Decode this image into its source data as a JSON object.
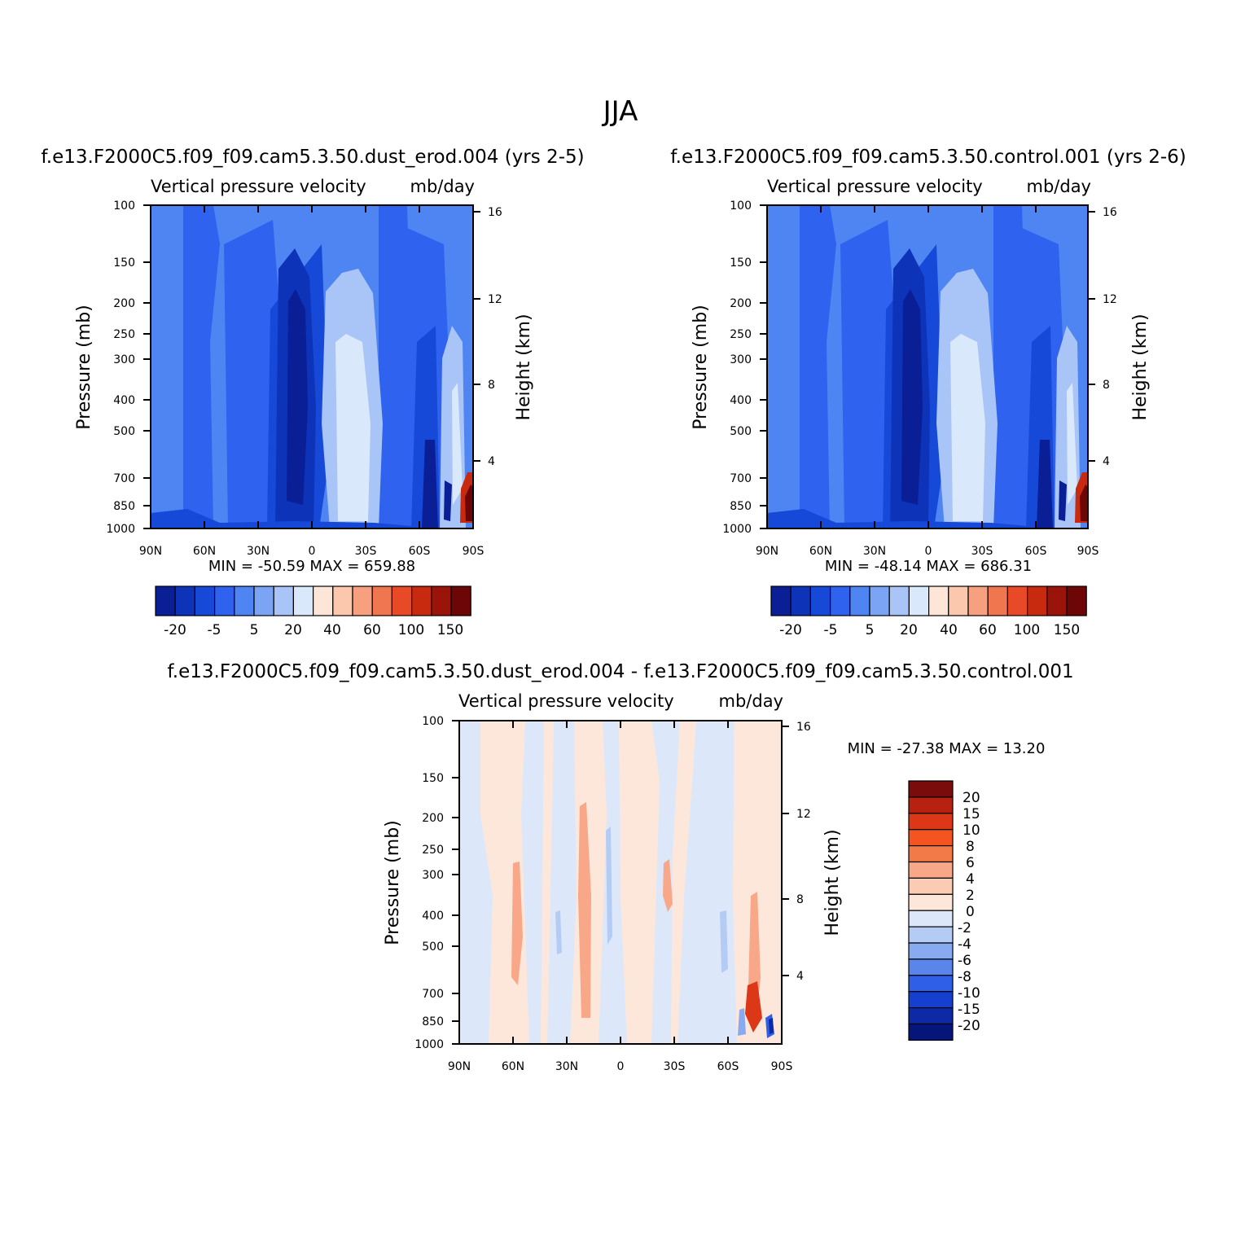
{
  "figure": {
    "title": "JJA",
    "variable_label": "Vertical pressure velocity",
    "units_label": "mb/day",
    "left_axis_title": "Pressure (mb)",
    "right_axis_title": "Height (km)"
  },
  "chart_data": [
    {
      "type": "heatmap",
      "title": "f.e13.F2000C5.f09_f09.cam5.3.50.dust_erod.004 (yrs 2-5)",
      "subtitle_left": "Vertical pressure velocity",
      "subtitle_right": "mb/day",
      "xlabel": "",
      "ylabel": "Pressure (mb)",
      "y2label": "Height (km)",
      "x_ticks": [
        "90N",
        "60N",
        "30N",
        "0",
        "30S",
        "60S",
        "90S"
      ],
      "x_tick_values": [
        90,
        60,
        30,
        0,
        -30,
        -60,
        -90
      ],
      "xlim": [
        90,
        -90
      ],
      "y_ticks": [
        100,
        150,
        200,
        250,
        300,
        400,
        500,
        700,
        850,
        1000
      ],
      "ylim": [
        1000,
        100
      ],
      "y_scale": "log",
      "y2_ticks": [
        4,
        8,
        12,
        16
      ],
      "stats": {
        "min": "-50.59",
        "max": "659.88"
      },
      "stats_text": "MIN = -50.59 MAX = 659.88",
      "colorbar": {
        "orientation": "horizontal",
        "labels": [
          "-20",
          "-5",
          "5",
          "20",
          "40",
          "60",
          "100",
          "150"
        ]
      }
    },
    {
      "type": "heatmap",
      "title": "f.e13.F2000C5.f09_f09.cam5.3.50.control.001 (yrs 2-6)",
      "subtitle_left": "Vertical pressure velocity",
      "subtitle_right": "mb/day",
      "xlabel": "",
      "ylabel": "Pressure (mb)",
      "y2label": "Height (km)",
      "x_ticks": [
        "90N",
        "60N",
        "30N",
        "0",
        "30S",
        "60S",
        "90S"
      ],
      "x_tick_values": [
        90,
        60,
        30,
        0,
        -30,
        -60,
        -90
      ],
      "xlim": [
        90,
        -90
      ],
      "y_ticks": [
        100,
        150,
        200,
        250,
        300,
        400,
        500,
        700,
        850,
        1000
      ],
      "ylim": [
        1000,
        100
      ],
      "y_scale": "log",
      "y2_ticks": [
        4,
        8,
        12,
        16
      ],
      "stats": {
        "min": "-48.14",
        "max": "686.31"
      },
      "stats_text": "MIN = -48.14 MAX = 686.31",
      "colorbar": {
        "orientation": "horizontal",
        "labels": [
          "-20",
          "-5",
          "5",
          "20",
          "40",
          "60",
          "100",
          "150"
        ]
      }
    },
    {
      "type": "heatmap",
      "title": "f.e13.F2000C5.f09_f09.cam5.3.50.dust_erod.004 - f.e13.F2000C5.f09_f09.cam5.3.50.control.001",
      "subtitle_left": "Vertical pressure velocity",
      "subtitle_right": "mb/day",
      "xlabel": "",
      "ylabel": "Pressure (mb)",
      "y2label": "Height (km)",
      "x_ticks": [
        "90N",
        "60N",
        "30N",
        "0",
        "30S",
        "60S",
        "90S"
      ],
      "x_tick_values": [
        90,
        60,
        30,
        0,
        -30,
        -60,
        -90
      ],
      "xlim": [
        90,
        -90
      ],
      "y_ticks": [
        100,
        150,
        200,
        250,
        300,
        400,
        500,
        700,
        850,
        1000
      ],
      "ylim": [
        1000,
        100
      ],
      "y_scale": "log",
      "y2_ticks": [
        4,
        8,
        12,
        16
      ],
      "stats": {
        "min": "-27.38",
        "max": "13.20"
      },
      "stats_text": "MIN = -27.38 MAX = 13.20",
      "colorbar": {
        "orientation": "vertical",
        "labels": [
          "20",
          "15",
          "10",
          "8",
          "6",
          "4",
          "2",
          "0",
          "-2",
          "-4",
          "-6",
          "-8",
          "-10",
          "-15",
          "-20"
        ]
      }
    }
  ],
  "colors": {
    "abs_scale": [
      "#0a1e96",
      "#0d33b8",
      "#1749d9",
      "#2f62ee",
      "#4e85f3",
      "#7ba4f5",
      "#a9c4f7",
      "#d9e8fb",
      "#fde6d8",
      "#fbc7ad",
      "#f6a07f",
      "#f07650",
      "#e84a27",
      "#c82a0f",
      "#9a1409",
      "#6d0606"
    ],
    "diff_scale": [
      "#7a0c0c",
      "#b82010",
      "#dc3818",
      "#f45520",
      "#f27a48",
      "#f8a888",
      "#fbcbb4",
      "#fde7da",
      "#dce8fa",
      "#b4ccf4",
      "#88aaf0",
      "#5a86ec",
      "#2f5fe6",
      "#1540cf",
      "#0c2aa6",
      "#06157a"
    ]
  }
}
